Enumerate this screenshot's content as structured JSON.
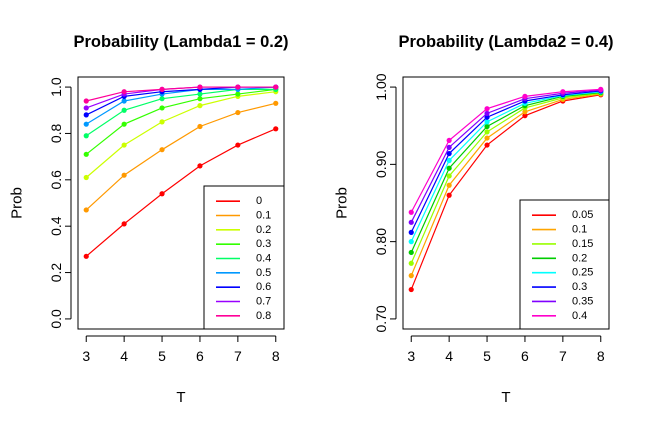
{
  "chart_data": [
    {
      "type": "line",
      "title": "Probability (Lambda1 = 0.2)",
      "xlabel": "T",
      "ylabel": "Prob",
      "x": [
        3,
        4,
        5,
        6,
        7,
        8
      ],
      "xlim": [
        3,
        8
      ],
      "ylim": [
        0,
        1
      ],
      "xticks": [
        "3",
        "4",
        "5",
        "6",
        "7",
        "8"
      ],
      "yticks": [
        "0.0",
        "0.2",
        "0.4",
        "0.6",
        "0.8",
        "1.0"
      ],
      "legend_position": "bottom-right",
      "grid": false,
      "series": [
        {
          "name": "0",
          "color": "#FF0000",
          "values": [
            0.27,
            0.41,
            0.54,
            0.66,
            0.75,
            0.82
          ]
        },
        {
          "name": "0.1",
          "color": "#FF9900",
          "values": [
            0.47,
            0.62,
            0.73,
            0.83,
            0.89,
            0.93
          ]
        },
        {
          "name": "0.2",
          "color": "#CCFF00",
          "values": [
            0.61,
            0.75,
            0.85,
            0.92,
            0.96,
            0.98
          ]
        },
        {
          "name": "0.3",
          "color": "#33FF00",
          "values": [
            0.71,
            0.84,
            0.91,
            0.95,
            0.97,
            0.99
          ]
        },
        {
          "name": "0.4",
          "color": "#00FF66",
          "values": [
            0.79,
            0.9,
            0.95,
            0.97,
            0.99,
            0.99
          ]
        },
        {
          "name": "0.5",
          "color": "#0099FF",
          "values": [
            0.84,
            0.94,
            0.97,
            0.99,
            0.99,
            1.0
          ]
        },
        {
          "name": "0.6",
          "color": "#0000FF",
          "values": [
            0.88,
            0.96,
            0.98,
            0.99,
            1.0,
            1.0
          ]
        },
        {
          "name": "0.7",
          "color": "#9900FF",
          "values": [
            0.91,
            0.97,
            0.99,
            1.0,
            1.0,
            1.0
          ]
        },
        {
          "name": "0.8",
          "color": "#FF0099",
          "values": [
            0.94,
            0.98,
            0.99,
            1.0,
            1.0,
            1.0
          ]
        }
      ]
    },
    {
      "type": "line",
      "title": "Probability (Lambda2 = 0.4)",
      "xlabel": "T",
      "ylabel": "Prob",
      "x": [
        3,
        4,
        5,
        6,
        7,
        8
      ],
      "xlim": [
        3,
        8
      ],
      "ylim": [
        0.7,
        1
      ],
      "xticks": [
        "3",
        "4",
        "5",
        "6",
        "7",
        "8"
      ],
      "yticks": [
        "0.70",
        "0.80",
        "0.90",
        "1.00"
      ],
      "legend_position": "bottom-right",
      "grid": false,
      "series": [
        {
          "name": "0.05",
          "color": "#FF0000",
          "values": [
            0.738,
            0.86,
            0.925,
            0.963,
            0.982,
            0.99
          ]
        },
        {
          "name": "0.1",
          "color": "#FFA500",
          "values": [
            0.756,
            0.873,
            0.934,
            0.968,
            0.984,
            0.991
          ]
        },
        {
          "name": "0.15",
          "color": "#99FF00",
          "values": [
            0.772,
            0.885,
            0.942,
            0.973,
            0.986,
            0.992
          ]
        },
        {
          "name": "0.2",
          "color": "#00CC00",
          "values": [
            0.786,
            0.895,
            0.949,
            0.976,
            0.988,
            0.993
          ]
        },
        {
          "name": "0.25",
          "color": "#00FFFF",
          "values": [
            0.8,
            0.905,
            0.955,
            0.979,
            0.989,
            0.994
          ]
        },
        {
          "name": "0.3",
          "color": "#0000FF",
          "values": [
            0.812,
            0.914,
            0.961,
            0.982,
            0.99,
            0.995
          ]
        },
        {
          "name": "0.35",
          "color": "#8000FF",
          "values": [
            0.825,
            0.922,
            0.966,
            0.985,
            0.992,
            0.996
          ]
        },
        {
          "name": "0.4",
          "color": "#FF00CC",
          "values": [
            0.838,
            0.931,
            0.972,
            0.988,
            0.994,
            0.997
          ]
        }
      ]
    }
  ]
}
